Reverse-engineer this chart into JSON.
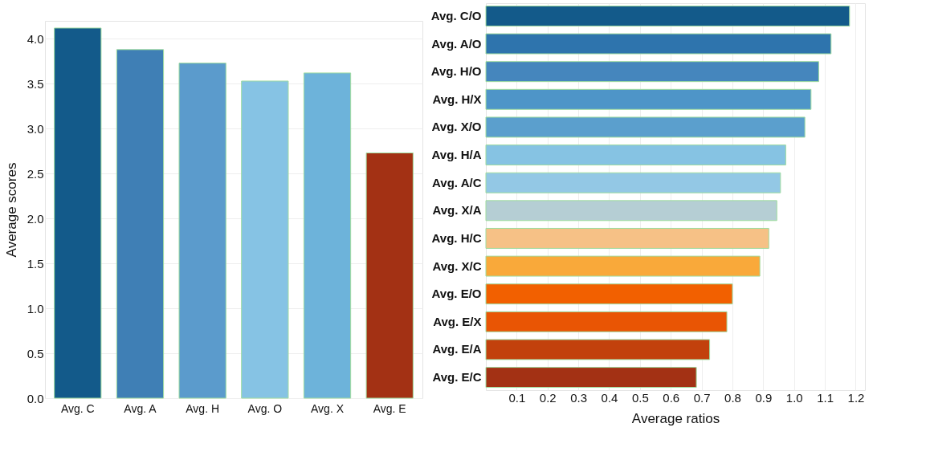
{
  "chart_data": [
    {
      "type": "bar",
      "ylabel": "Average scores",
      "categories": [
        "Avg. C",
        "Avg. A",
        "Avg. H",
        "Avg. O",
        "Avg. X",
        "Avg. E"
      ],
      "values": [
        4.12,
        3.88,
        3.73,
        3.53,
        3.62,
        2.73
      ],
      "colors": [
        "#135a8a",
        "#3f7fb5",
        "#5b9bcc",
        "#86c3e4",
        "#6db3da",
        "#a33114"
      ],
      "ylim": [
        0,
        4.2
      ],
      "yticks": [
        {
          "value": 0,
          "label": "0.0"
        },
        0.5,
        {
          "value": 1,
          "label": "1.0"
        },
        1.5,
        {
          "value": 2,
          "label": "2.0"
        },
        2.5,
        {
          "value": 3,
          "label": "3.0"
        },
        3.5,
        {
          "value": 4,
          "label": "4.0"
        }
      ],
      "grid": "y"
    },
    {
      "type": "bar",
      "orientation": "horizontal",
      "xlabel": "Average ratios",
      "categories": [
        "Avg. C/O",
        "Avg. A/O",
        "Avg. H/O",
        "Avg. H/X",
        "Avg. X/O",
        "Avg. H/A",
        "Avg. A/C",
        "Avg. X/A",
        "Avg. H/C",
        "Avg. X/C",
        "Avg. E/O",
        "Avg. E/X",
        "Avg. E/A",
        "Avg. E/C"
      ],
      "values": [
        1.18,
        1.12,
        1.08,
        1.055,
        1.035,
        0.973,
        0.956,
        0.944,
        0.918,
        0.889,
        0.8,
        0.782,
        0.726,
        0.683
      ],
      "colors": [
        "#135a8a",
        "#2e74ad",
        "#4586bd",
        "#4e95c8",
        "#5b9fcd",
        "#86c3e3",
        "#93c8e5",
        "#b5ced4",
        "#f6c186",
        "#f9a93a",
        "#f26000",
        "#e95504",
        "#c2410c",
        "#a33114"
      ],
      "xlim": [
        0,
        1.23
      ],
      "xticks": [
        0.1,
        0.2,
        0.3,
        0.4,
        0.5,
        0.6,
        0.7,
        0.8,
        0.9,
        {
          "value": 1,
          "label": "1.0"
        },
        1.1,
        1.2
      ],
      "grid": "x"
    }
  ]
}
